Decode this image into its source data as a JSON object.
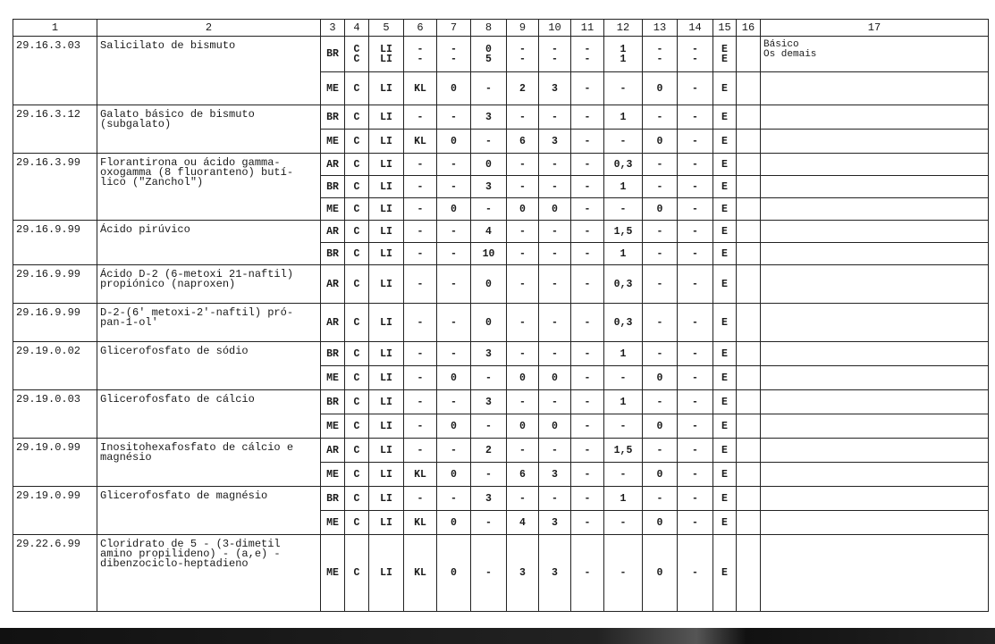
{
  "headers": [
    "1",
    "2",
    "3",
    "4",
    "5",
    "6",
    "7",
    "8",
    "9",
    "10",
    "11",
    "12",
    "13",
    "14",
    "15",
    "16",
    "17"
  ],
  "groups": [
    {
      "code": "29.16.3.03",
      "desc": "Salicilato de bismuto",
      "note": "Básico\nOs demais",
      "rows": [
        [
          "BR",
          "C\nC",
          "LI\nLI",
          "-\n-",
          "-\n-",
          "0\n5",
          "-\n-",
          "-\n-",
          "-\n-",
          "1\n1",
          "-\n-",
          "-\n-",
          "E\nE"
        ],
        [
          "ME",
          "C",
          "LI",
          "KL",
          "0",
          "-",
          "2",
          "3",
          "-",
          "-",
          "0",
          "-",
          "E"
        ]
      ]
    },
    {
      "code": "29.16.3.12",
      "desc": "Galato básico de bismuto\n(subgalato)",
      "note": "",
      "rows": [
        [
          "BR",
          "C",
          "LI",
          "-",
          "-",
          "3",
          "-",
          "-",
          "-",
          "1",
          "-",
          "-",
          "E"
        ],
        [
          "ME",
          "C",
          "LI",
          "KL",
          "0",
          "-",
          "6",
          "3",
          "-",
          "-",
          "0",
          "-",
          "E"
        ]
      ]
    },
    {
      "code": "29.16.3.99",
      "desc": "Florantirona ou ácido gamma-\noxogamma (8 fluoranteno) butí-\nlico (\"Zanchol\")",
      "note": "",
      "rows": [
        [
          "AR",
          "C",
          "LI",
          "-",
          "-",
          "0",
          "-",
          "-",
          "-",
          "0,3",
          "-",
          "-",
          "E"
        ],
        [
          "BR",
          "C",
          "LI",
          "-",
          "-",
          "3",
          "-",
          "-",
          "-",
          "1",
          "-",
          "-",
          "E"
        ],
        [
          "ME",
          "C",
          "LI",
          "-",
          "0",
          "-",
          "0",
          "0",
          "-",
          "-",
          "0",
          "-",
          "E"
        ]
      ]
    },
    {
      "code": "29.16.9.99",
      "desc": "Ácido pirúvico",
      "note": "",
      "rows": [
        [
          "AR",
          "C",
          "LI",
          "-",
          "-",
          "4",
          "-",
          "-",
          "-",
          "1,5",
          "-",
          "-",
          "E"
        ],
        [
          "BR",
          "C",
          "LI",
          "-",
          "-",
          "10",
          "-",
          "-",
          "-",
          "1",
          "-",
          "-",
          "E"
        ]
      ]
    },
    {
      "code": "29.16.9.99",
      "desc": "Ácido D-2 (6-metoxi 21-naftil)\npropiónico (naproxen)",
      "note": "",
      "rows": [
        [
          "AR",
          "C",
          "LI",
          "-",
          "-",
          "0",
          "-",
          "-",
          "-",
          "0,3",
          "-",
          "-",
          "E"
        ]
      ]
    },
    {
      "code": "29.16.9.99",
      "desc": "D-2-(6' metoxi-2'-naftil) pró-\npan-1-ol'",
      "note": "",
      "rows": [
        [
          "AR",
          "C",
          "LI",
          "-",
          "-",
          "0",
          "-",
          "-",
          "-",
          "0,3",
          "-",
          "-",
          "E"
        ]
      ]
    },
    {
      "code": "29.19.0.02",
      "desc": "Glicerofosfato de sódio",
      "note": "",
      "rows": [
        [
          "BR",
          "C",
          "LI",
          "-",
          "-",
          "3",
          "-",
          "-",
          "-",
          "1",
          "-",
          "-",
          "E"
        ],
        [
          "ME",
          "C",
          "LI",
          "-",
          "0",
          "-",
          "0",
          "0",
          "-",
          "-",
          "0",
          "-",
          "E"
        ]
      ]
    },
    {
      "code": "29.19.0.03",
      "desc": "Glicerofosfato de cálcio",
      "note": "",
      "rows": [
        [
          "BR",
          "C",
          "LI",
          "-",
          "-",
          "3",
          "-",
          "-",
          "-",
          "1",
          "-",
          "-",
          "E"
        ],
        [
          "ME",
          "C",
          "LI",
          "-",
          "0",
          "-",
          "0",
          "0",
          "-",
          "-",
          "0",
          "-",
          "E"
        ]
      ]
    },
    {
      "code": "29.19.0.99",
      "desc": "Inositohexafosfato de cálcio e\nmagnésio",
      "note": "",
      "rows": [
        [
          "AR",
          "C",
          "LI",
          "-",
          "-",
          "2",
          "-",
          "-",
          "-",
          "1,5",
          "-",
          "-",
          "E"
        ],
        [
          "ME",
          "C",
          "LI",
          "KL",
          "0",
          "-",
          "6",
          "3",
          "-",
          "-",
          "0",
          "-",
          "E"
        ]
      ]
    },
    {
      "code": "29.19.0.99",
      "desc": "Glicerofosfato de magnésio",
      "note": "",
      "rows": [
        [
          "BR",
          "C",
          "LI",
          "-",
          "-",
          "3",
          "-",
          "-",
          "-",
          "1",
          "-",
          "-",
          "E"
        ],
        [
          "ME",
          "C",
          "LI",
          "KL",
          "0",
          "-",
          "4",
          "3",
          "-",
          "-",
          "0",
          "-",
          "E"
        ]
      ]
    },
    {
      "code": "29.22.6.99",
      "desc": "Cloridrato de 5 - (3-dimetil\namino propilideno) - (a,e) -\ndibenzociclo-heptadieno",
      "note": "",
      "rows": [
        [
          "ME",
          "C",
          "LI",
          "KL",
          "0",
          "-",
          "3",
          "3",
          "-",
          "-",
          "0",
          "-",
          "E"
        ]
      ]
    }
  ]
}
